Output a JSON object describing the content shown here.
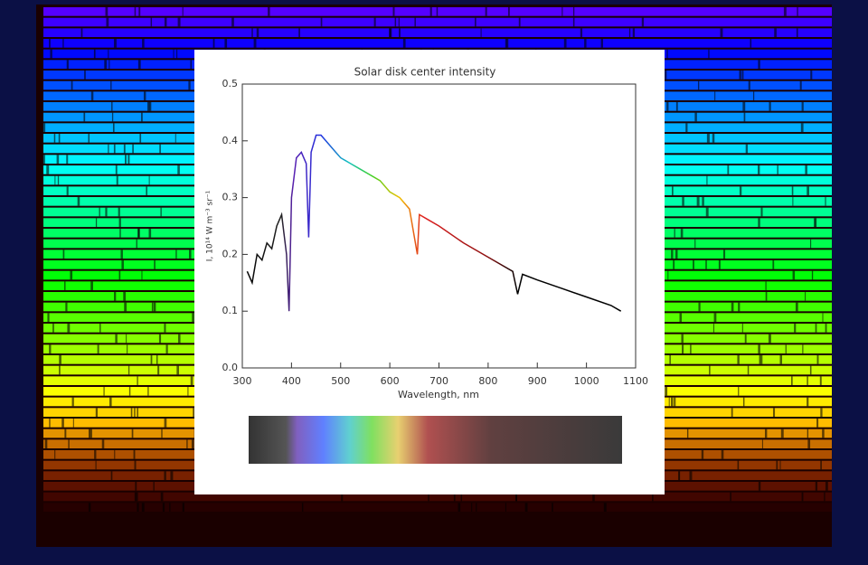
{
  "chart_data": {
    "type": "line",
    "title": "Solar disk center intensity",
    "x_label": "Wavelength, nm",
    "y_label": "I, 10¹⁴ W m⁻³ sr⁻¹",
    "x": [
      310,
      320,
      330,
      340,
      350,
      360,
      370,
      380,
      390,
      395,
      400,
      410,
      420,
      430,
      435,
      440,
      450,
      460,
      470,
      480,
      490,
      500,
      520,
      540,
      560,
      580,
      600,
      620,
      640,
      656,
      660,
      680,
      700,
      750,
      800,
      850,
      860,
      870,
      900,
      950,
      1000,
      1050,
      1070
    ],
    "values": [
      0.17,
      0.15,
      0.2,
      0.19,
      0.22,
      0.21,
      0.25,
      0.27,
      0.2,
      0.1,
      0.3,
      0.37,
      0.38,
      0.36,
      0.23,
      0.38,
      0.41,
      0.41,
      0.4,
      0.39,
      0.38,
      0.37,
      0.36,
      0.35,
      0.34,
      0.33,
      0.31,
      0.3,
      0.28,
      0.2,
      0.27,
      0.26,
      0.25,
      0.22,
      0.195,
      0.17,
      0.13,
      0.165,
      0.155,
      0.14,
      0.125,
      0.11,
      0.1
    ],
    "xlim": [
      300,
      1100
    ],
    "ylim": [
      0,
      0.5
    ],
    "xticks": [
      300,
      400,
      500,
      600,
      700,
      800,
      900,
      1000,
      1100
    ],
    "yticks": [
      {
        "value": 0,
        "label": "0.0"
      },
      0.1,
      0.2,
      0.3,
      0.4,
      0.5
    ]
  }
}
